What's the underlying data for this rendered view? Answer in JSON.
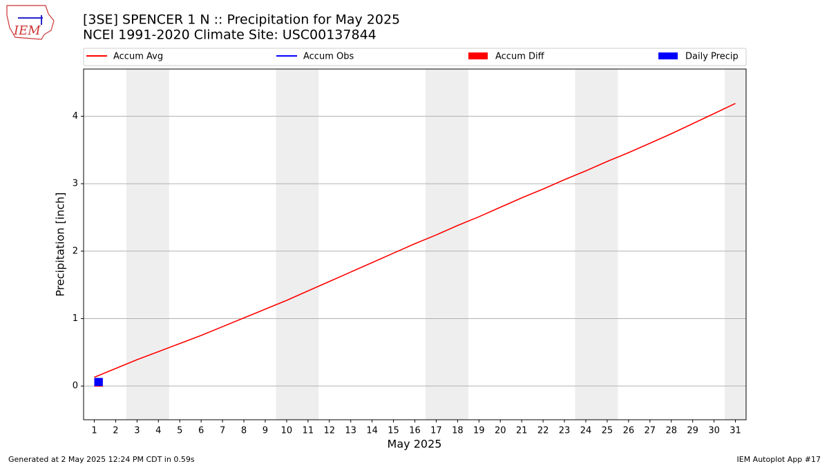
{
  "logo": {
    "text": "IEM"
  },
  "footer": {
    "left": "Generated at 2 May 2025 12:24 PM CDT in 0.59s",
    "right": "IEM Autoplot App #17"
  },
  "chart_data": {
    "type": "line",
    "title": "[3SE] SPENCER 1 N :: Precipitation for May 2025",
    "subtitle": "NCEI 1991-2020 Climate Site: USC00137844",
    "x_label": "May 2025",
    "y_label": "Precipitation [inch]",
    "x": [
      1,
      2,
      3,
      4,
      5,
      6,
      7,
      8,
      9,
      10,
      11,
      12,
      13,
      14,
      15,
      16,
      17,
      18,
      19,
      20,
      21,
      22,
      23,
      24,
      25,
      26,
      27,
      28,
      29,
      30,
      31
    ],
    "xlim": [
      0.5,
      31.5
    ],
    "xticks": [
      1,
      2,
      3,
      4,
      5,
      6,
      7,
      8,
      9,
      10,
      11,
      12,
      13,
      14,
      15,
      16,
      17,
      18,
      19,
      20,
      21,
      22,
      23,
      24,
      25,
      26,
      27,
      28,
      29,
      30,
      31
    ],
    "ylim": [
      -0.5,
      4.7
    ],
    "yticks": [
      0,
      1,
      2,
      3,
      4
    ],
    "grid": true,
    "weekend_days": [
      3,
      4,
      10,
      11,
      17,
      18,
      24,
      25,
      31
    ],
    "weekend_color": "#eeeeee",
    "series": [
      {
        "name": "Accum Avg",
        "kind": "line",
        "color": "#ff0000",
        "values": [
          0.13,
          0.26,
          0.39,
          0.51,
          0.63,
          0.75,
          0.88,
          1.01,
          1.14,
          1.27,
          1.41,
          1.55,
          1.69,
          1.83,
          1.97,
          2.11,
          2.24,
          2.38,
          2.51,
          2.65,
          2.79,
          2.92,
          3.06,
          3.19,
          3.33,
          3.46,
          3.6,
          3.74,
          3.89,
          4.04,
          4.19
        ]
      },
      {
        "name": "Accum Obs",
        "kind": "line",
        "color": "#0000ff",
        "values": [
          0.12,
          null,
          null,
          null,
          null,
          null,
          null,
          null,
          null,
          null,
          null,
          null,
          null,
          null,
          null,
          null,
          null,
          null,
          null,
          null,
          null,
          null,
          null,
          null,
          null,
          null,
          null,
          null,
          null,
          null,
          null
        ]
      },
      {
        "name": "Accum Diff",
        "kind": "bar",
        "color": "#ff0000",
        "values": [
          -0.01,
          null,
          null,
          null,
          null,
          null,
          null,
          null,
          null,
          null,
          null,
          null,
          null,
          null,
          null,
          null,
          null,
          null,
          null,
          null,
          null,
          null,
          null,
          null,
          null,
          null,
          null,
          null,
          null,
          null,
          null
        ]
      },
      {
        "name": "Daily Precip",
        "kind": "bar",
        "color": "#0000ff",
        "values": [
          0.12,
          null,
          null,
          null,
          null,
          null,
          null,
          null,
          null,
          null,
          null,
          null,
          null,
          null,
          null,
          null,
          null,
          null,
          null,
          null,
          null,
          null,
          null,
          null,
          null,
          null,
          null,
          null,
          null,
          null,
          null
        ]
      }
    ]
  }
}
